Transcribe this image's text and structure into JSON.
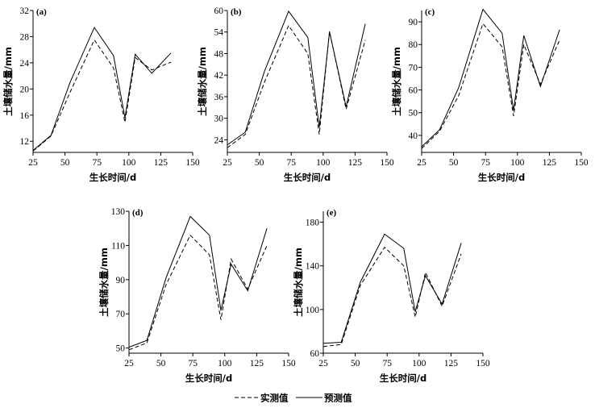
{
  "chart_data": [
    {
      "type": "line",
      "panel_label": "(a)",
      "xlabel": "生长时间/d",
      "ylabel": "土壤储水量/mm",
      "xlim": [
        25,
        150
      ],
      "ylim": [
        10.3,
        32
      ],
      "xticks": [
        "25",
        "50",
        "75",
        "100",
        "125",
        "150"
      ],
      "yticks": [
        "12",
        "16",
        "20",
        "24",
        "28",
        "32"
      ],
      "grid": false,
      "series": [
        {
          "name": "实测值",
          "style": "dashed",
          "x": [
            25,
            39,
            54,
            73,
            88,
            97,
            105,
            118,
            133
          ],
          "y": [
            10.5,
            12.8,
            19.5,
            27.5,
            23.2,
            14.9,
            24.8,
            22.9,
            24.1
          ]
        },
        {
          "name": "预测值",
          "style": "solid",
          "x": [
            25,
            39,
            54,
            73,
            88,
            97,
            105,
            118,
            133
          ],
          "y": [
            10.6,
            12.9,
            21.0,
            29.4,
            25.1,
            15.6,
            25.3,
            22.4,
            25.5
          ]
        }
      ]
    },
    {
      "type": "line",
      "panel_label": "(b)",
      "xlabel": "生长时间/d",
      "ylabel": "土壤储水量/mm",
      "xlim": [
        25,
        150
      ],
      "ylim": [
        20.5,
        60
      ],
      "xticks": [
        "25",
        "50",
        "75",
        "100",
        "125",
        "150"
      ],
      "yticks": [
        "24",
        "30",
        "36",
        "42",
        "48",
        "54",
        "60"
      ],
      "grid": false,
      "series": [
        {
          "name": "实测值",
          "style": "dashed",
          "x": [
            25,
            39,
            54,
            73,
            88,
            97,
            105,
            118,
            133
          ],
          "y": [
            21.8,
            25.5,
            40.0,
            55.8,
            48.0,
            25.5,
            54.2,
            32.5,
            51.8
          ]
        },
        {
          "name": "预测值",
          "style": "solid",
          "x": [
            25,
            39,
            54,
            73,
            88,
            97,
            105,
            118,
            133
          ],
          "y": [
            22.6,
            26.1,
            43.0,
            59.8,
            52.5,
            27.5,
            54.0,
            33.2,
            56.3
          ]
        }
      ]
    },
    {
      "type": "line",
      "panel_label": "(c)",
      "xlabel": "生长时间/d",
      "ylabel": "土壤储水量/mm",
      "xlim": [
        25,
        150
      ],
      "ylim": [
        32.5,
        95
      ],
      "xticks": [
        "25",
        "50",
        "75",
        "100",
        "125",
        "150"
      ],
      "yticks": [
        "40",
        "50",
        "60",
        "70",
        "80",
        "90"
      ],
      "grid": false,
      "series": [
        {
          "name": "实测值",
          "style": "dashed",
          "x": [
            25,
            39,
            54,
            73,
            88,
            97,
            105,
            118,
            133
          ],
          "y": [
            34.2,
            41.8,
            57.5,
            89.2,
            79.0,
            48.5,
            80.0,
            62.5,
            82.0
          ]
        },
        {
          "name": "预测值",
          "style": "solid",
          "x": [
            25,
            39,
            54,
            73,
            88,
            97,
            105,
            118,
            133
          ],
          "y": [
            35.0,
            42.5,
            61.0,
            95.5,
            85.0,
            51.0,
            84.0,
            61.5,
            86.5
          ]
        }
      ]
    },
    {
      "type": "line",
      "panel_label": "(d)",
      "xlabel": "生长时间/d",
      "ylabel": "土壤储水量/mm",
      "xlim": [
        25,
        150
      ],
      "ylim": [
        47,
        130
      ],
      "xticks": [
        "25",
        "50",
        "75",
        "100",
        "125",
        "150"
      ],
      "yticks": [
        "50",
        "70",
        "90",
        "110",
        "130"
      ],
      "grid": false,
      "series": [
        {
          "name": "实测值",
          "style": "dashed",
          "x": [
            25,
            39,
            54,
            73,
            88,
            97,
            105,
            118,
            133
          ],
          "y": [
            49.0,
            53.0,
            87.0,
            116.0,
            104.5,
            66.5,
            102.0,
            84.5,
            110.0
          ]
        },
        {
          "name": "预测值",
          "style": "solid",
          "x": [
            25,
            39,
            54,
            73,
            88,
            97,
            105,
            118,
            133
          ],
          "y": [
            50.5,
            54.5,
            91.0,
            127.0,
            116.0,
            72.0,
            99.0,
            83.5,
            120.0
          ]
        }
      ]
    },
    {
      "type": "line",
      "panel_label": "(e)",
      "xlabel": "生长时间/d",
      "ylabel": "土壤储水量/mm",
      "xlim": [
        25,
        150
      ],
      "ylim": [
        60,
        190
      ],
      "xticks": [
        "25",
        "50",
        "75",
        "100",
        "125",
        "150"
      ],
      "yticks": [
        "60",
        "100",
        "140",
        "180"
      ],
      "grid": false,
      "series": [
        {
          "name": "实测值",
          "style": "dashed",
          "x": [
            25,
            39,
            54,
            73,
            88,
            97,
            105,
            118,
            133
          ],
          "y": [
            66.0,
            68.0,
            122.0,
            157.0,
            140.0,
            93.0,
            134.0,
            103.0,
            151.0
          ]
        },
        {
          "name": "预测值",
          "style": "solid",
          "x": [
            25,
            39,
            54,
            73,
            88,
            97,
            105,
            118,
            133
          ],
          "y": [
            69.0,
            70.0,
            125.0,
            169.0,
            156.0,
            98.0,
            131.0,
            105.0,
            161.0
          ]
        }
      ]
    }
  ],
  "legend": {
    "placement": "bottom-center",
    "measured_label": "实测值",
    "predicted_label": "预测值"
  }
}
